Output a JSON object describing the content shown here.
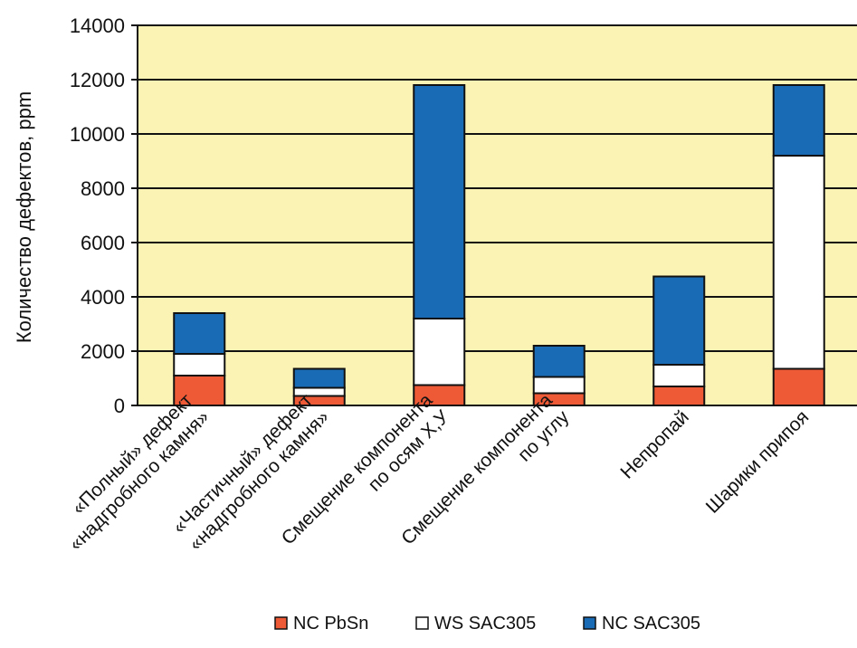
{
  "chart_data": {
    "type": "bar",
    "stacked": true,
    "ylabel": "Количество дефектов, ppm",
    "ylim": [
      0,
      14000
    ],
    "yticks": [
      0,
      2000,
      4000,
      6000,
      8000,
      10000,
      12000,
      14000
    ],
    "grid": "horizontal",
    "legend_position": "bottom",
    "categories": [
      [
        "«Полный» дефект",
        "«надгробного камня»"
      ],
      [
        "«Частичный» дефект",
        "«надгробного камня»"
      ],
      [
        "Смещение компонента",
        "по осям Х,У"
      ],
      [
        "Смещение компонента",
        "по углу"
      ],
      [
        "Непропай"
      ],
      [
        "Шарики припоя"
      ]
    ],
    "series": [
      {
        "name": "NC PbSn",
        "color": "#ee5a36",
        "values": [
          1100,
          350,
          750,
          450,
          700,
          1350
        ]
      },
      {
        "name": "WS SAC305",
        "color": "#ffffff",
        "values": [
          800,
          300,
          2450,
          600,
          800,
          7850
        ]
      },
      {
        "name": "NC SAC305",
        "color": "#1a6bb5",
        "values": [
          1500,
          700,
          8600,
          1150,
          3250,
          2600
        ]
      }
    ],
    "plot_background": "#fbf3b3"
  }
}
